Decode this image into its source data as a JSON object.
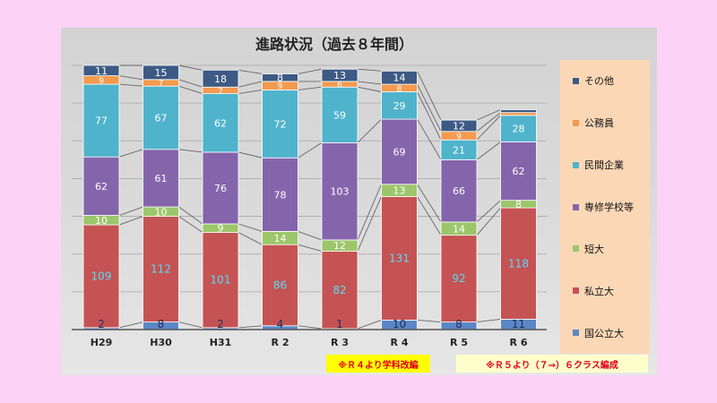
{
  "chart_data": {
    "type": "bar",
    "stacked": true,
    "title": "進路状況（過去８年間）",
    "categories": [
      "H29",
      "H30",
      "H31",
      "R 2",
      "R 3",
      "R 4",
      "R 5",
      "R 6"
    ],
    "series": [
      {
        "name": "国公立大",
        "color": "#5b87c6",
        "values": [
          2,
          8,
          2,
          4,
          1,
          10,
          8,
          11
        ],
        "labels": [
          "2",
          "8",
          "2",
          "4",
          "1",
          "10",
          "8",
          "11"
        ]
      },
      {
        "name": "私立大",
        "color": "#c55353",
        "values": [
          109,
          112,
          101,
          86,
          82,
          131,
          92,
          118
        ],
        "labels": [
          "109",
          "112",
          "101",
          "86",
          "82",
          "131",
          "92",
          "118"
        ]
      },
      {
        "name": "短大",
        "color": "#9cc66a",
        "values": [
          10,
          10,
          9,
          14,
          12,
          13,
          14,
          8
        ],
        "labels": [
          "10",
          "10",
          "9",
          "14",
          "12",
          "13",
          "14",
          "8"
        ]
      },
      {
        "name": "専修学校等",
        "color": "#8465ab",
        "values": [
          62,
          61,
          76,
          78,
          103,
          69,
          66,
          62
        ],
        "labels": [
          "62",
          "61",
          "76",
          "78",
          "103",
          "69",
          "66",
          "62"
        ]
      },
      {
        "name": "民間企業",
        "color": "#4fb3cc",
        "values": [
          77,
          67,
          62,
          72,
          59,
          29,
          21,
          28
        ],
        "labels": [
          "77",
          "67",
          "62",
          "72",
          "59",
          "29",
          "21",
          "28"
        ]
      },
      {
        "name": "公務員",
        "color": "#f39a4e",
        "values": [
          9,
          7,
          7,
          9,
          6,
          8,
          9,
          3
        ],
        "labels": [
          "9",
          "7",
          "7",
          "9",
          "6",
          "8",
          "9",
          ""
        ]
      },
      {
        "name": "その他",
        "color": "#3d5a85",
        "values": [
          11,
          15,
          18,
          8,
          13,
          14,
          12,
          3
        ],
        "labels": [
          "11",
          "15",
          "18",
          "8",
          "13",
          "14",
          "12",
          ""
        ]
      }
    ],
    "ylim": [
      0,
      280
    ],
    "grid": true,
    "legend_position": "right",
    "legend_order": [
      "その他",
      "公務員",
      "民間企業",
      "専修学校等",
      "短大",
      "私立大",
      "国公立大"
    ]
  },
  "notes": {
    "note1": "※Ｒ４より学科改編",
    "note2": "※Ｒ５より（７⇒）６クラス編成"
  }
}
